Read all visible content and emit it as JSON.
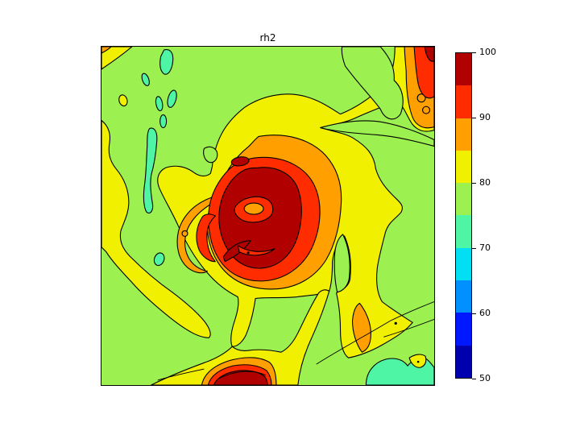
{
  "chart_data": {
    "type": "contour",
    "title": "rh2",
    "variable": "rh2 (2-m relative humidity, filled contour map)",
    "levels": [
      50,
      55,
      60,
      65,
      70,
      75,
      80,
      85,
      90,
      95,
      100
    ],
    "level_step": 5,
    "value_range": [
      50,
      100
    ],
    "grid": false,
    "axis_tick_labels_visible": false,
    "palette": {
      "c50": "#0000AE",
      "c55": "#0018FF",
      "c60": "#0090FF",
      "c65": "#00E0F2",
      "c70": "#4DF5A5",
      "c75": "#9CF04F",
      "c80": "#F0F000",
      "c85": "#FFA000",
      "c90": "#FF2C00",
      "c95": "#B00000"
    },
    "contour_line_color": "#000000",
    "colorbar": {
      "position": "right",
      "orientation": "vertical",
      "ticks": [
        100,
        90,
        80,
        70,
        60,
        50
      ],
      "min": 50,
      "max": 100,
      "bands_top_to_bottom": [
        {
          "from": 95,
          "to": 100,
          "palette": "c95"
        },
        {
          "from": 90,
          "to": 95,
          "palette": "c90"
        },
        {
          "from": 85,
          "to": 90,
          "palette": "c85"
        },
        {
          "from": 80,
          "to": 85,
          "palette": "c80"
        },
        {
          "from": 75,
          "to": 80,
          "palette": "c75"
        },
        {
          "from": 70,
          "to": 75,
          "palette": "c70"
        },
        {
          "from": 65,
          "to": 70,
          "palette": "c65"
        },
        {
          "from": 60,
          "to": 65,
          "palette": "c60"
        },
        {
          "from": 55,
          "to": 60,
          "palette": "c55"
        },
        {
          "from": 50,
          "to": 55,
          "palette": "c50"
        }
      ]
    },
    "features": [
      {
        "name": "background-field",
        "value_range": "75-80",
        "extent": "entire domain"
      },
      {
        "name": "cyclone-core",
        "value_range": "95-100",
        "center_frac": [
          0.47,
          0.5
        ],
        "note": "dark red eyewall ring with drier eye (85-90) at center"
      },
      {
        "name": "cyclone-eye",
        "value_range": "85-90",
        "center_frac": [
          0.46,
          0.48
        ]
      },
      {
        "name": "spiral-moist-band",
        "value_range": "80-85",
        "note": "large yellow spiral wrapping cyclone, arms to NE corner and SE"
      },
      {
        "name": "west-edge-band",
        "value_range": "80-85",
        "center_frac": [
          0.05,
          0.45
        ]
      },
      {
        "name": "dry-patches-northwest",
        "value_range": "70-75",
        "center_frac": [
          0.17,
          0.15
        ]
      },
      {
        "name": "dry-patch-southeast",
        "value_range": "70-75",
        "center_frac": [
          0.88,
          0.96
        ]
      },
      {
        "name": "northeast-corner-max",
        "value_range": "95-100",
        "center_frac": [
          0.99,
          0.01
        ]
      },
      {
        "name": "south-edge-max",
        "value_range": "95-100",
        "center_frac": [
          0.41,
          0.99
        ]
      },
      {
        "name": "southeast-blob",
        "value_range": "80-90",
        "center_frac": [
          0.8,
          0.82
        ]
      }
    ]
  }
}
